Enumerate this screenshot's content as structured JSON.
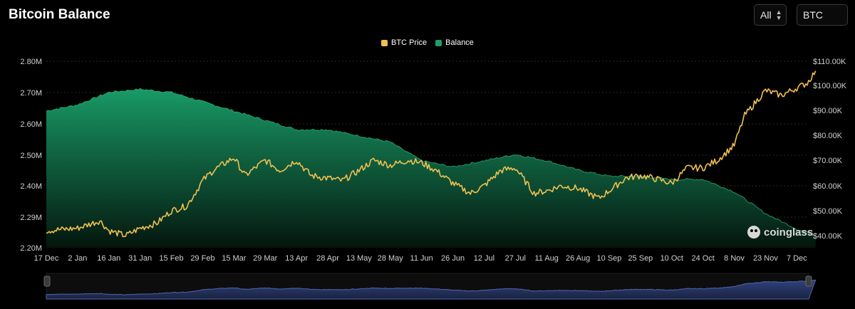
{
  "header": {
    "title": "Bitcoin Balance"
  },
  "controls": {
    "range": {
      "value": "All",
      "icon": "updown-chevron-icon"
    },
    "asset": {
      "value": "BTC",
      "icon": "chevron-down-icon"
    }
  },
  "watermark": {
    "text": "coinglass",
    "icon": "coinglass-logo-icon"
  },
  "colors": {
    "price": "#f0c050",
    "balance": "#1f9e6a",
    "background": "#000000",
    "grid": "#2a2a2a",
    "navigator_fill": "#243256",
    "navigator_line": "#4f66a8"
  },
  "chart_data": {
    "type": "line",
    "title": "",
    "legend_position": "top-center",
    "grid": true,
    "x_ticks": [
      "17 Dec",
      "2 Jan",
      "16 Jan",
      "31 Jan",
      "15 Feb",
      "29 Feb",
      "15 Mar",
      "29 Mar",
      "13 Apr",
      "28 Apr",
      "13 May",
      "28 May",
      "11 Jun",
      "26 Jun",
      "12 Jul",
      "27 Jul",
      "11 Aug",
      "26 Aug",
      "10 Sep",
      "25 Sep",
      "10 Oct",
      "24 Oct",
      "8 Nov",
      "23 Nov",
      "7 Dec"
    ],
    "y_left": {
      "ticks": [
        "2.20M",
        "2.29M",
        "2.40M",
        "2.50M",
        "2.60M",
        "2.70M",
        "2.80M"
      ],
      "range": [
        2.2,
        2.8
      ],
      "unit": "M BTC"
    },
    "y_right": {
      "ticks": [
        "$40.00K",
        "$50.00K",
        "$60.00K",
        "$70.00K",
        "$80.00K",
        "$90.00K",
        "$100.00K",
        "$110.00K"
      ],
      "range": [
        37,
        110
      ],
      "unit": "K USD"
    },
    "series": [
      {
        "name": "BTC Price",
        "axis": "right",
        "x": [
          "17 Dec",
          "2 Jan",
          "12 Jan",
          "16 Jan",
          "24 Jan",
          "31 Jan",
          "8 Feb",
          "15 Feb",
          "22 Feb",
          "29 Feb",
          "5 Mar",
          "15 Mar",
          "20 Mar",
          "29 Mar",
          "5 Apr",
          "13 Apr",
          "20 Apr",
          "28 Apr",
          "5 May",
          "13 May",
          "20 May",
          "28 May",
          "5 Jun",
          "11 Jun",
          "18 Jun",
          "26 Jun",
          "5 Jul",
          "12 Jul",
          "20 Jul",
          "27 Jul",
          "5 Aug",
          "11 Aug",
          "18 Aug",
          "26 Aug",
          "5 Sep",
          "10 Sep",
          "18 Sep",
          "25 Sep",
          "1 Oct",
          "10 Oct",
          "17 Oct",
          "24 Oct",
          "31 Oct",
          "8 Nov",
          "13 Nov",
          "23 Nov",
          "30 Nov",
          "7 Dec",
          "12 Dec",
          "16 Dec"
        ],
        "values": [
          42,
          43,
          46,
          42,
          40,
          43,
          45,
          50,
          52,
          62,
          66,
          71,
          64,
          70,
          66,
          70,
          64,
          63,
          62,
          66,
          70,
          68,
          70,
          69,
          66,
          61,
          57,
          60,
          66,
          67,
          57,
          58,
          60,
          59,
          55,
          58,
          63,
          64,
          63,
          61,
          67,
          67,
          70,
          76,
          88,
          98,
          96,
          99,
          101,
          106
        ]
      },
      {
        "name": "Balance",
        "axis": "left",
        "x": [
          "17 Dec",
          "2 Jan",
          "16 Jan",
          "31 Jan",
          "15 Feb",
          "29 Feb",
          "15 Mar",
          "29 Mar",
          "13 Apr",
          "28 Apr",
          "13 May",
          "28 May",
          "11 Jun",
          "26 Jun",
          "12 Jul",
          "27 Jul",
          "11 Aug",
          "26 Aug",
          "10 Sep",
          "25 Sep",
          "10 Oct",
          "24 Oct",
          "8 Nov",
          "23 Nov",
          "7 Dec",
          "16 Dec"
        ],
        "values": [
          2.64,
          2.66,
          2.7,
          2.71,
          2.7,
          2.67,
          2.64,
          2.61,
          2.58,
          2.58,
          2.56,
          2.54,
          2.48,
          2.46,
          2.48,
          2.5,
          2.48,
          2.45,
          2.43,
          2.43,
          2.42,
          2.42,
          2.38,
          2.31,
          2.26,
          2.24
        ]
      }
    ]
  }
}
